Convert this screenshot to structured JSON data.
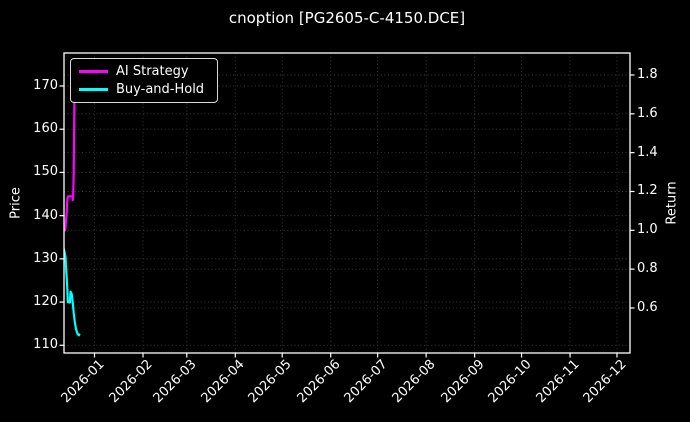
{
  "title": "cnoption [PG2605-C-4150.DCE]",
  "chart_data": {
    "type": "line",
    "title": "cnoption [PG2605-C-4150.DCE]",
    "grid": true,
    "background": "#000000",
    "x_axis": {
      "label": "",
      "tick_labels": [
        "2026-01",
        "2026-02",
        "2026-03",
        "2026-04",
        "2026-05",
        "2026-06",
        "2026-07",
        "2026-08",
        "2026-09",
        "2026-10",
        "2026-11",
        "2026-12"
      ],
      "range": [
        "2025-12-12",
        "2026-12-09"
      ]
    },
    "left_axis": {
      "label": "Price",
      "ticks": [
        110,
        120,
        130,
        140,
        150,
        160,
        170
      ],
      "range": [
        108.1,
        177.6
      ]
    },
    "right_axis": {
      "label": "Return",
      "ticks": [
        0.6,
        0.8,
        1.0,
        1.2,
        1.4,
        1.6,
        1.8
      ],
      "range": [
        0.37,
        1.91
      ]
    },
    "legend": {
      "position": "upper-left",
      "entries": [
        "AI Strategy",
        "Buy-and-Hold"
      ]
    },
    "x_unit": "days since start_date",
    "start_date": "2025-12-12",
    "series": [
      {
        "name": "AI Strategy",
        "axis": "return",
        "color": "#ff00ff",
        "points": [
          [
            0,
            1.0
          ],
          [
            1.0,
            1.0
          ],
          [
            1.3,
            1.02
          ],
          [
            1.6,
            1.05
          ],
          [
            2.0,
            1.09
          ],
          [
            2.3,
            1.14
          ],
          [
            2.6,
            1.17
          ],
          [
            3.0,
            1.175
          ],
          [
            5.7,
            1.175
          ],
          [
            5.9,
            1.155
          ],
          [
            6.2,
            1.19
          ],
          [
            6.5,
            1.29
          ],
          [
            6.7,
            1.47
          ],
          [
            6.9,
            1.62
          ],
          [
            7.1,
            1.73
          ]
        ]
      },
      {
        "name": "Buy-and-Hold",
        "axis": "price",
        "color": "#00ffff",
        "points": [
          [
            0,
            132.5
          ],
          [
            0.65,
            131.6
          ],
          [
            1.3,
            130.2
          ],
          [
            1.45,
            129.0
          ],
          [
            1.7,
            127.4
          ],
          [
            2.1,
            125.3
          ],
          [
            2.5,
            122.6
          ],
          [
            2.75,
            120.0
          ],
          [
            4.1,
            119.9
          ],
          [
            4.45,
            122.4
          ],
          [
            5.2,
            121.9
          ],
          [
            5.9,
            119.8
          ],
          [
            6.5,
            117.5
          ],
          [
            7.2,
            115.4
          ],
          [
            8.0,
            113.8
          ],
          [
            9.0,
            112.6
          ],
          [
            9.8,
            112.3
          ],
          [
            10.1,
            112.5
          ]
        ]
      }
    ]
  }
}
